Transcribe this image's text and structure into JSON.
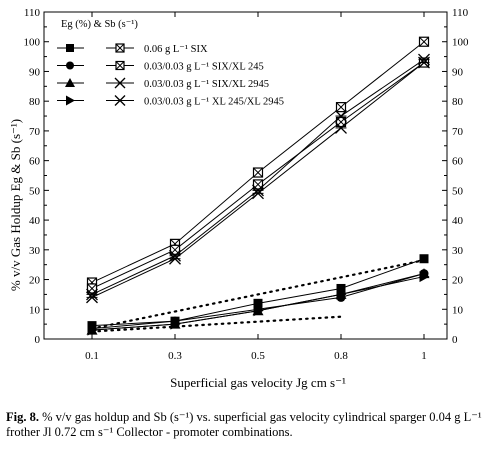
{
  "chart_data": {
    "type": "line",
    "categories": [
      "0.1",
      "0.3",
      "0.5",
      "0.8",
      "1"
    ],
    "xlabel": "Superficial gas velocity Jg cm s⁻¹",
    "ylabel": "% v/v Gas Holdup Eg & Sb (s⁻¹)",
    "ylim": [
      0,
      110
    ],
    "yticks": [
      0,
      10,
      20,
      30,
      40,
      50,
      60,
      70,
      80,
      90,
      100,
      110
    ],
    "grid": false,
    "legend": {
      "title": "Eg (%) & Sb (s⁻¹)",
      "position": "top-left",
      "entries": [
        "0.06 g L⁻¹ SIX",
        "0.03/0.03 g L⁻¹ SIX/XL 245",
        "0.03/0.03 g L⁻¹ SIX/XL 2945",
        "0.03/0.03 g L⁻¹ XL 245/XL 2945"
      ]
    },
    "series": [
      {
        "name": "0.06 g L⁻¹ SIX",
        "kind": "Eg",
        "marker": "square-filled",
        "values": [
          4.5,
          6,
          12,
          17,
          27
        ]
      },
      {
        "name": "0.03/0.03 g L⁻¹ SIX/XL 245",
        "kind": "Eg",
        "marker": "circle-filled",
        "values": [
          3.5,
          6,
          10,
          14,
          22
        ]
      },
      {
        "name": "0.03/0.03 g L⁻¹ SIX/XL 2945",
        "kind": "Eg",
        "marker": "triangle-filled",
        "values": [
          3,
          5,
          9.5,
          15,
          22
        ]
      },
      {
        "name": "0.03/0.03 g L⁻¹ XL 245/XL 2945",
        "kind": "Eg",
        "marker": "triangle-right-filled",
        "values": [
          3,
          5,
          9.5,
          15,
          21
        ]
      },
      {
        "name": "0.06 g L⁻¹ SIX",
        "kind": "Sb",
        "marker": "square-crossed",
        "values": [
          19,
          32,
          56,
          78,
          100
        ]
      },
      {
        "name": "0.03/0.03 g L⁻¹ SIX/XL 245",
        "kind": "Sb",
        "marker": "square-crossed",
        "values": [
          17,
          30,
          52,
          73,
          93
        ]
      },
      {
        "name": "0.03/0.03 g L⁻¹ SIX/XL 2945",
        "kind": "Sb",
        "marker": "x-star",
        "values": [
          15,
          28,
          50,
          75,
          94
        ]
      },
      {
        "name": "0.03/0.03 g L⁻¹ XL 245/XL 2945",
        "kind": "Sb",
        "marker": "x-star",
        "values": [
          14,
          27,
          49,
          71,
          93
        ]
      }
    ],
    "dotted_lines": [
      {
        "from": [
          0.1,
          2.5
        ],
        "to": [
          0.8,
          7.5
        ]
      },
      {
        "from": [
          0.1,
          3.5
        ],
        "to": [
          1.0,
          26.5
        ]
      }
    ]
  },
  "caption": {
    "figure_label": "Fig. 8.",
    "text": "% v/v gas holdup and Sb (s⁻¹) vs. superficial gas velocity cylindrical sparger 0.04 g L⁻¹ frother Jl 0.72 cm s⁻¹ Collector - promoter combinations."
  }
}
